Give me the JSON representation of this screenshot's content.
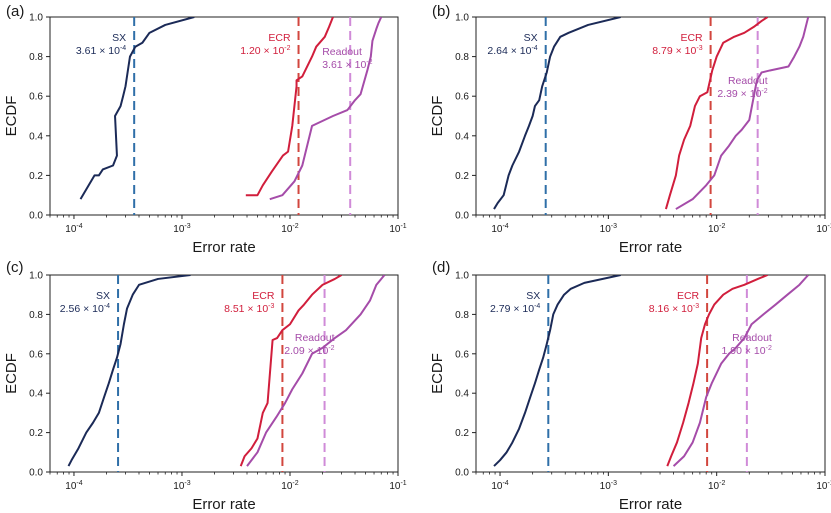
{
  "colors": {
    "sx": "#1b2a57",
    "ecr": "#d11e3c",
    "readout": "#a54ca9",
    "sx_line": "#2f6fa8",
    "ecr_line": "#d2463e",
    "readout_line": "#d08bd8"
  },
  "axis_labels": {
    "x": "Error rate",
    "y": "ECDF"
  },
  "y_tick_labels": [
    "0.0",
    "0.2",
    "0.4",
    "0.6",
    "0.8",
    "1.0"
  ],
  "x_tick_labels": [
    {
      "base": "10",
      "exp": "-4"
    },
    {
      "base": "10",
      "exp": "-3"
    },
    {
      "base": "10",
      "exp": "-2"
    },
    {
      "base": "10",
      "exp": "-1"
    }
  ],
  "chart_data": [
    {
      "type": "line",
      "panel": "(a)",
      "xscale": "log",
      "xlim": [
        6e-05,
        0.1
      ],
      "ylim": [
        0,
        1
      ],
      "xlabel": "Error rate",
      "ylabel": "ECDF",
      "series": [
        {
          "name": "SX",
          "x": [
            0.000115,
            0.000115,
            0.000155,
            0.00017,
            0.000185,
            0.00023,
            0.00025,
            0.00024,
            0.00027,
            0.000285,
            0.0003,
            0.00033,
            0.00037,
            0.00043,
            0.0005,
            0.0007,
            0.0013
          ],
          "y": [
            0.08,
            0.08,
            0.2,
            0.2,
            0.23,
            0.25,
            0.3,
            0.5,
            0.55,
            0.6,
            0.65,
            0.8,
            0.85,
            0.87,
            0.92,
            0.96,
            1.0
          ]
        },
        {
          "name": "ECR",
          "x": [
            0.0039,
            0.005,
            0.0056,
            0.0068,
            0.0086,
            0.0096,
            0.0105,
            0.0115,
            0.0115,
            0.013,
            0.016,
            0.0175,
            0.021,
            0.023,
            0.025
          ],
          "y": [
            0.1,
            0.1,
            0.15,
            0.22,
            0.3,
            0.32,
            0.45,
            0.65,
            0.68,
            0.7,
            0.8,
            0.85,
            0.9,
            0.95,
            1.0
          ]
        },
        {
          "name": "Readout",
          "x": [
            0.0065,
            0.0085,
            0.011,
            0.013,
            0.016,
            0.025,
            0.034,
            0.04,
            0.045,
            0.052,
            0.056,
            0.058,
            0.063,
            0.066,
            0.07
          ],
          "y": [
            0.08,
            0.1,
            0.17,
            0.25,
            0.45,
            0.5,
            0.53,
            0.58,
            0.61,
            0.73,
            0.8,
            0.88,
            0.94,
            0.97,
            1.0
          ]
        }
      ],
      "vlines": [
        {
          "name": "SX",
          "x": 0.000361,
          "label": "SX",
          "value_mantissa": "3.61",
          "value_exp": "-4"
        },
        {
          "name": "ECR",
          "x": 0.012,
          "label": "ECR",
          "value_mantissa": "1.20",
          "value_exp": "-2"
        },
        {
          "name": "Readout",
          "x": 0.0361,
          "label": "Readout",
          "value_mantissa": "3.61",
          "value_exp": "-2"
        }
      ]
    },
    {
      "type": "line",
      "panel": "(b)",
      "xscale": "log",
      "xlim": [
        6e-05,
        0.1
      ],
      "ylim": [
        0,
        1
      ],
      "xlabel": "Error rate",
      "ylabel": "ECDF",
      "series": [
        {
          "name": "SX",
          "x": [
            8.8e-05,
            9.5e-05,
            0.000108,
            0.00012,
            0.00013,
            0.00015,
            0.00017,
            0.000185,
            0.0002,
            0.00021,
            0.00023,
            0.000245,
            0.00027,
            0.00029,
            0.000315,
            0.00036,
            0.00043,
            0.00065,
            0.0013
          ],
          "y": [
            0.03,
            0.06,
            0.1,
            0.2,
            0.25,
            0.32,
            0.4,
            0.45,
            0.5,
            0.55,
            0.58,
            0.65,
            0.72,
            0.8,
            0.85,
            0.9,
            0.92,
            0.96,
            1.0
          ]
        },
        {
          "name": "ECR",
          "x": [
            0.0034,
            0.0037,
            0.0042,
            0.0045,
            0.005,
            0.0057,
            0.0063,
            0.007,
            0.0082,
            0.0091,
            0.01,
            0.0115,
            0.0145,
            0.018,
            0.022,
            0.026,
            0.0295
          ],
          "y": [
            0.03,
            0.1,
            0.2,
            0.3,
            0.38,
            0.45,
            0.55,
            0.6,
            0.62,
            0.73,
            0.8,
            0.87,
            0.9,
            0.92,
            0.95,
            0.98,
            1.0
          ]
        },
        {
          "name": "Readout",
          "x": [
            0.0042,
            0.006,
            0.008,
            0.0095,
            0.011,
            0.013,
            0.015,
            0.017,
            0.02,
            0.0235,
            0.026,
            0.031,
            0.046,
            0.052,
            0.058,
            0.063,
            0.07
          ],
          "y": [
            0.03,
            0.08,
            0.15,
            0.2,
            0.3,
            0.35,
            0.4,
            0.43,
            0.48,
            0.68,
            0.72,
            0.73,
            0.75,
            0.8,
            0.85,
            0.9,
            1.0
          ]
        }
      ],
      "vlines": [
        {
          "name": "SX",
          "x": 0.000264,
          "label": "SX",
          "value_mantissa": "2.64",
          "value_exp": "-4"
        },
        {
          "name": "ECR",
          "x": 0.00879,
          "label": "ECR",
          "value_mantissa": "8.79",
          "value_exp": "-3"
        },
        {
          "name": "Readout",
          "x": 0.0239,
          "label": "Readout",
          "value_mantissa": "2.39",
          "value_exp": "-2"
        }
      ]
    },
    {
      "type": "line",
      "panel": "(c)",
      "xscale": "log",
      "xlim": [
        6e-05,
        0.1
      ],
      "ylim": [
        0,
        1
      ],
      "xlabel": "Error rate",
      "ylabel": "ECDF",
      "series": [
        {
          "name": "SX",
          "x": [
            8.9e-05,
            9.5e-05,
            0.00011,
            0.00013,
            0.00015,
            0.00017,
            0.00019,
            0.00021,
            0.00023,
            0.00025,
            0.00027,
            0.00029,
            0.00031,
            0.00035,
            0.0004,
            0.0006,
            0.0012
          ],
          "y": [
            0.03,
            0.06,
            0.12,
            0.2,
            0.25,
            0.3,
            0.38,
            0.45,
            0.52,
            0.58,
            0.65,
            0.75,
            0.83,
            0.9,
            0.95,
            0.98,
            1.0
          ]
        },
        {
          "name": "ECR",
          "x": [
            0.0035,
            0.0038,
            0.0044,
            0.005,
            0.0056,
            0.0062,
            0.0069,
            0.0076,
            0.0085,
            0.01,
            0.012,
            0.0135,
            0.016,
            0.02,
            0.026,
            0.03
          ],
          "y": [
            0.03,
            0.08,
            0.12,
            0.17,
            0.3,
            0.35,
            0.67,
            0.68,
            0.72,
            0.75,
            0.82,
            0.85,
            0.9,
            0.95,
            0.98,
            1.0
          ]
        },
        {
          "name": "Readout",
          "x": [
            0.004,
            0.005,
            0.006,
            0.0075,
            0.009,
            0.0105,
            0.013,
            0.016,
            0.02,
            0.026,
            0.033,
            0.045,
            0.055,
            0.063,
            0.075
          ],
          "y": [
            0.03,
            0.1,
            0.2,
            0.28,
            0.35,
            0.42,
            0.5,
            0.6,
            0.63,
            0.68,
            0.72,
            0.8,
            0.87,
            0.95,
            1.0
          ]
        }
      ],
      "vlines": [
        {
          "name": "SX",
          "x": 0.000256,
          "label": "SX",
          "value_mantissa": "2.56",
          "value_exp": "-4"
        },
        {
          "name": "ECR",
          "x": 0.00851,
          "label": "ECR",
          "value_mantissa": "8.51",
          "value_exp": "-3"
        },
        {
          "name": "Readout",
          "x": 0.0209,
          "label": "Readout",
          "value_mantissa": "2.09",
          "value_exp": "-2"
        }
      ]
    },
    {
      "type": "line",
      "panel": "(d)",
      "xscale": "log",
      "xlim": [
        6e-05,
        0.1
      ],
      "ylim": [
        0,
        1
      ],
      "xlabel": "Error rate",
      "ylabel": "ECDF",
      "series": [
        {
          "name": "SX",
          "x": [
            8.8e-05,
            0.0001,
            0.000115,
            0.00013,
            0.00015,
            0.00017,
            0.00019,
            0.00021,
            0.00023,
            0.00025,
            0.00027,
            0.00029,
            0.00031,
            0.00034,
            0.00039,
            0.00045,
            0.0006,
            0.0013
          ],
          "y": [
            0.03,
            0.06,
            0.1,
            0.15,
            0.22,
            0.3,
            0.38,
            0.45,
            0.52,
            0.58,
            0.65,
            0.72,
            0.8,
            0.85,
            0.9,
            0.93,
            0.96,
            1.0
          ]
        },
        {
          "name": "ECR",
          "x": [
            0.0035,
            0.0038,
            0.0043,
            0.0049,
            0.0055,
            0.0061,
            0.0067,
            0.0072,
            0.0078,
            0.0085,
            0.0095,
            0.0115,
            0.014,
            0.018,
            0.024,
            0.0295
          ],
          "y": [
            0.03,
            0.08,
            0.15,
            0.25,
            0.35,
            0.45,
            0.55,
            0.68,
            0.75,
            0.8,
            0.85,
            0.9,
            0.93,
            0.95,
            0.98,
            1.0
          ]
        },
        {
          "name": "Readout",
          "x": [
            0.004,
            0.005,
            0.006,
            0.007,
            0.008,
            0.009,
            0.011,
            0.013,
            0.015,
            0.018,
            0.021,
            0.027,
            0.035,
            0.045,
            0.058,
            0.07
          ],
          "y": [
            0.03,
            0.08,
            0.15,
            0.25,
            0.38,
            0.45,
            0.55,
            0.6,
            0.63,
            0.68,
            0.75,
            0.8,
            0.85,
            0.9,
            0.95,
            1.0
          ]
        }
      ],
      "vlines": [
        {
          "name": "SX",
          "x": 0.000279,
          "label": "SX",
          "value_mantissa": "2.79",
          "value_exp": "-4"
        },
        {
          "name": "ECR",
          "x": 0.00816,
          "label": "ECR",
          "value_mantissa": "8.16",
          "value_exp": "-3"
        },
        {
          "name": "Readout",
          "x": 0.019,
          "label": "Readout",
          "value_mantissa": "1.90",
          "value_exp": "-2"
        }
      ]
    }
  ]
}
